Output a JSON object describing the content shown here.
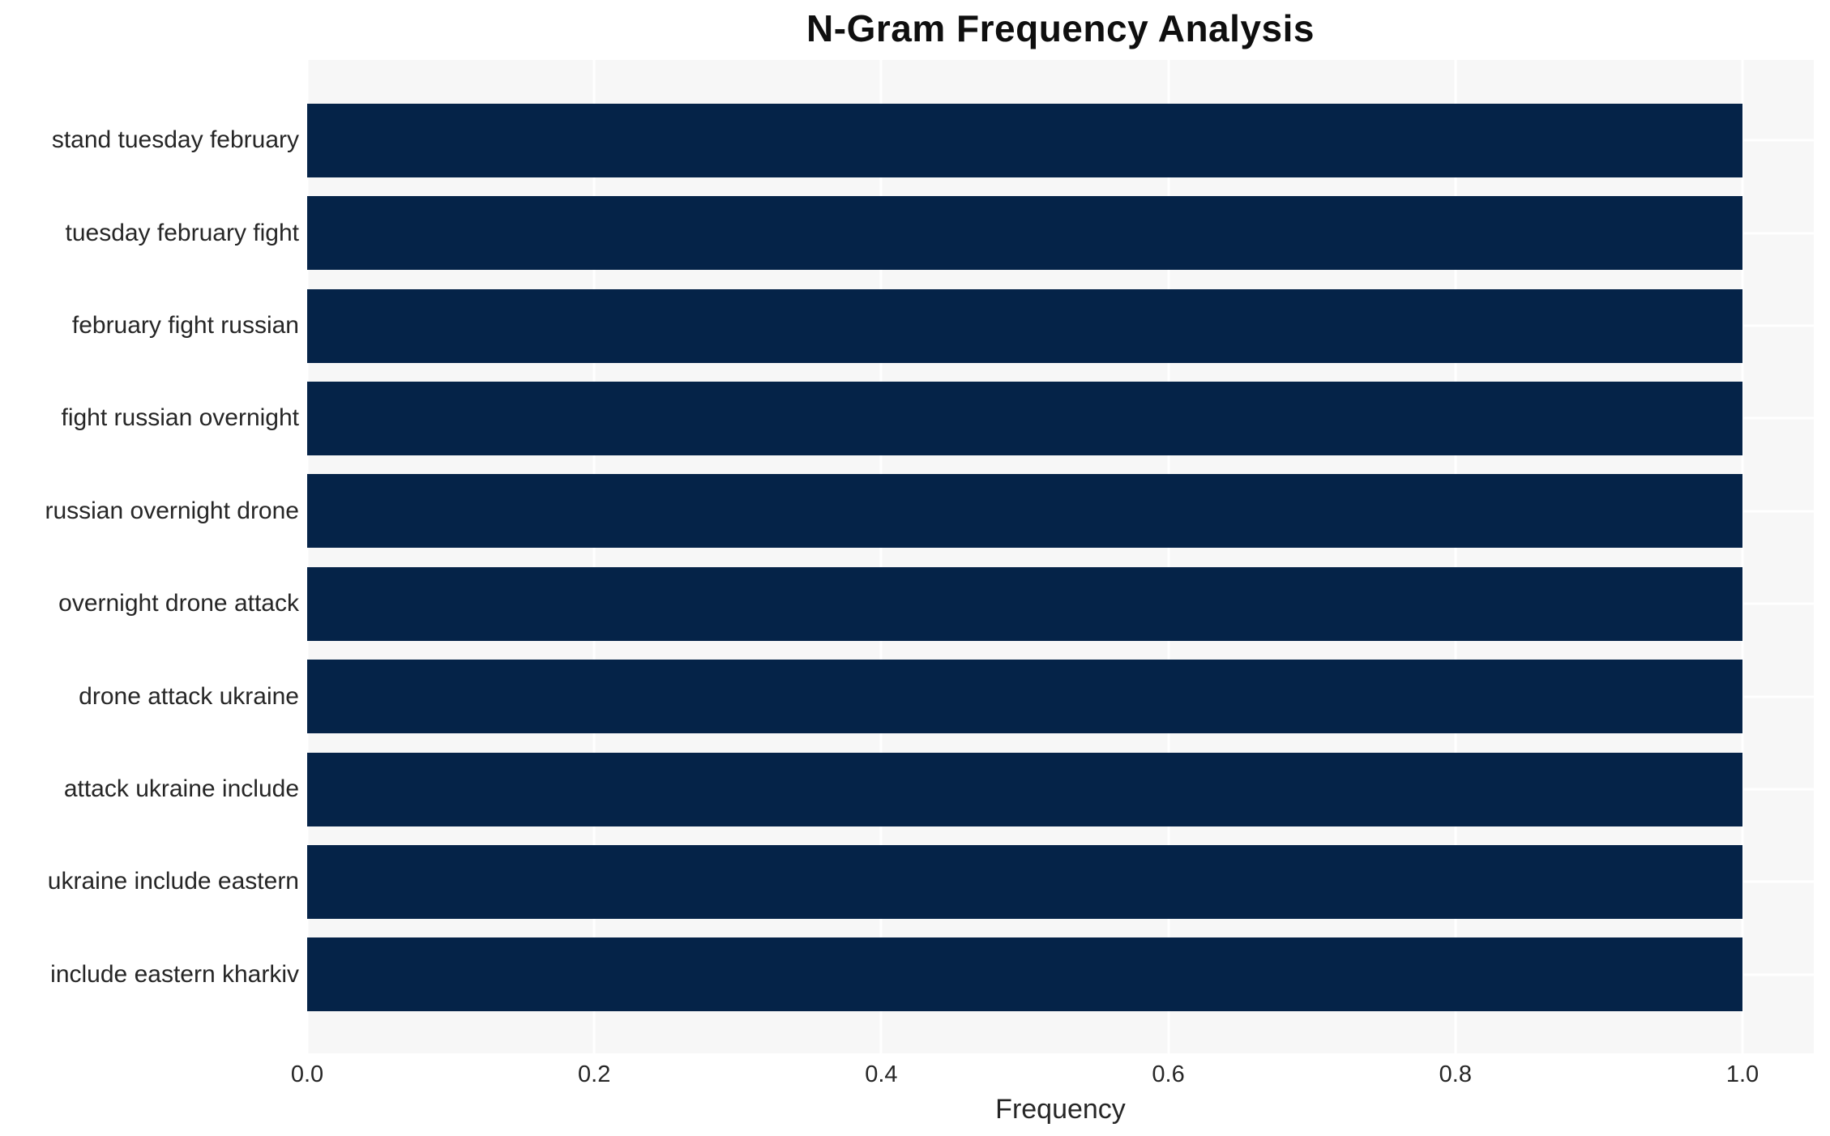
{
  "chart_data": {
    "type": "bar",
    "orientation": "horizontal",
    "title": "N-Gram Frequency Analysis",
    "xlabel": "Frequency",
    "ylabel": "",
    "categories": [
      "stand tuesday february",
      "tuesday february fight",
      "february fight russian",
      "fight russian overnight",
      "russian overnight drone",
      "overnight drone attack",
      "drone attack ukraine",
      "attack ukraine include",
      "ukraine include eastern",
      "include eastern kharkiv"
    ],
    "values": [
      1.0,
      1.0,
      1.0,
      1.0,
      1.0,
      1.0,
      1.0,
      1.0,
      1.0,
      1.0
    ],
    "x_ticks": [
      0.0,
      0.2,
      0.4,
      0.6,
      0.8,
      1.0
    ],
    "x_tick_labels": [
      "0.0",
      "0.2",
      "0.4",
      "0.6",
      "0.8",
      "1.0"
    ],
    "xlim": [
      0.0,
      1.05
    ],
    "grid": true,
    "legend": false,
    "colors": {
      "bar": "#052348",
      "plot_background": "#f7f7f7",
      "figure_background": "#ffffff",
      "gridline": "#ffffff",
      "tick_label": "#262626",
      "title": "#0f0f0f"
    }
  }
}
